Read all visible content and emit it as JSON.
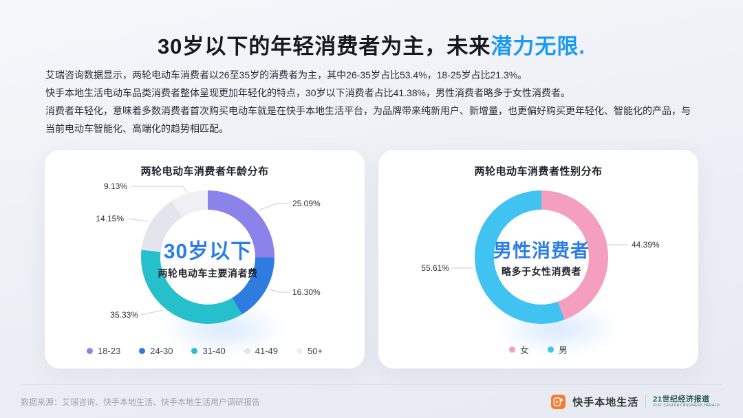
{
  "title": {
    "main": "30岁以下的年轻消费者为主，未来",
    "highlight": "潜力无限."
  },
  "intro": {
    "lines": [
      "艾瑞咨询数据显示，两轮电动车消费者以26至35岁的消费者为主，其中26-35岁占比53.4%，18-25岁占比21.3%。",
      "快手本地生活电动车品类消费者整体呈现更加年轻化的特点，30岁以下消费者占比41.38%，男性消费者略多于女性消费者。",
      "消费者年轻化，意味着多数消费者首次购买电动车就是在快手本地生活平台，为品牌带来纯新用户、新增量，也更偏好购买更年轻化、智能化的产品，与当前电动车智能化、高端化的趋势相匹配。"
    ]
  },
  "colors": {
    "title_highlight_blue": "#1899F2",
    "center_text_blue": "#2B7DE9",
    "leader_line": "#CBCEDA"
  },
  "chart_data": [
    {
      "type": "pie",
      "title": "两轮电动车消费者年龄分布",
      "center_title": "30岁以下",
      "center_subtitle": "两轮电动车主要消者费",
      "legend_position": "bottom",
      "segments": [
        {
          "label": "18-23",
          "value": 25.09,
          "display": "25.09%",
          "color": "#8C83EA"
        },
        {
          "label": "24-30",
          "value": 16.3,
          "display": "16.30%",
          "color": "#2E7CE0"
        },
        {
          "label": "31-40",
          "value": 35.33,
          "display": "35.33%",
          "color": "#26C0CC"
        },
        {
          "label": "41-49",
          "value": 14.15,
          "display": "14.15%",
          "color": "#E4E5EC"
        },
        {
          "label": "50+",
          "value": 9.13,
          "display": "9.13%",
          "color": "#EFEFF4"
        }
      ]
    },
    {
      "type": "pie",
      "title": "两轮电动车消费者性别分布",
      "center_title": "男性消费者",
      "center_subtitle": "略多于女性消费者",
      "legend_position": "bottom",
      "segments": [
        {
          "label": "女",
          "value": 44.39,
          "display": "44.39%",
          "color": "#F59FBE"
        },
        {
          "label": "男",
          "value": 55.61,
          "display": "55.61%",
          "color": "#41C3F2"
        }
      ]
    }
  ],
  "footer": {
    "source": "数据来源：艾瑞咨询、快手本地生活、快手本地生活用户调研报告",
    "brand": "快手本地生活",
    "partner": "21世纪经济报道",
    "partner_sub": "21ST CENTURY BUSINESS HERALD"
  }
}
